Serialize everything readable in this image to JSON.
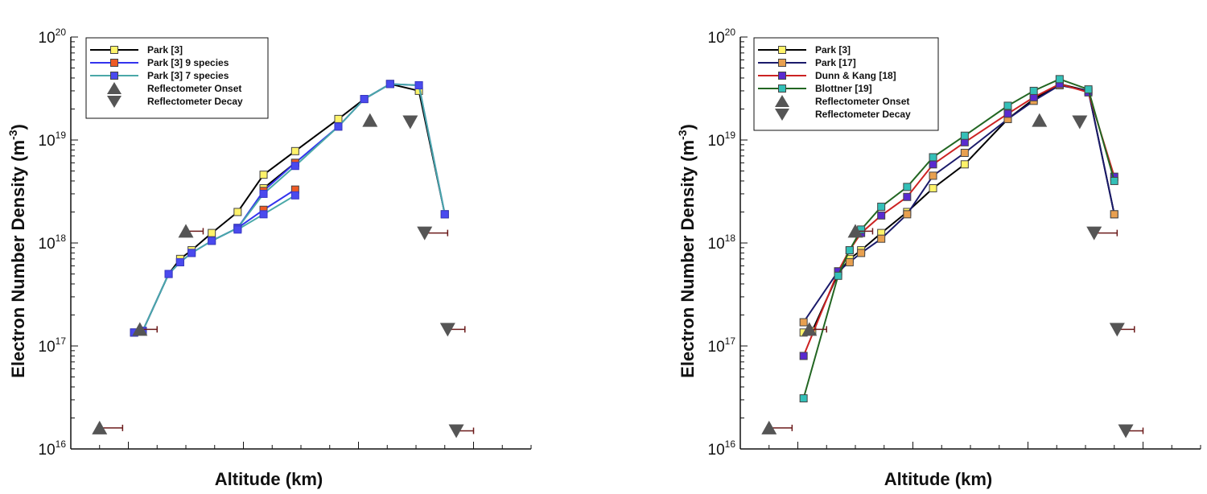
{
  "chart_data": [
    {
      "type": "line",
      "xlabel": "Altitude (km)",
      "ylabel_main": "Electron Number Density (m",
      "ylabel_exp": "-3",
      "ylabel_close": ")",
      "xlim": [
        90,
        10
      ],
      "xticks": [
        80,
        60,
        40,
        20
      ],
      "ylim": [
        1e+16,
        1e+20
      ],
      "yscale": "log",
      "ytick_base": "10",
      "yticks": [
        {
          "exp": "16",
          "value": 1e+16
        },
        {
          "exp": "17",
          "value": 1e+17
        },
        {
          "exp": "18",
          "value": 1e+18
        },
        {
          "exp": "19",
          "value": 1e+19
        },
        {
          "exp": "20",
          "value": 1e+20
        }
      ],
      "legend_location": "top-left",
      "series": [
        {
          "name": "Park [3]",
          "color": "#000000",
          "marker_color": "#fff36a",
          "marker": "square",
          "segments": [
            {
              "x": [
                79,
                77.5,
                73,
                71,
                69,
                65.5,
                61,
                56.5,
                51,
                43.5,
                39,
                34.5,
                29.5,
                25
              ],
              "y": [
                1.35e+17,
                1.4e+17,
                5e+17,
                7e+17,
                8.5e+17,
                1.25e+18,
                2e+18,
                4.6e+18,
                7.8e+18,
                1.6e+19,
                2.5e+19,
                3.5e+19,
                3e+19,
                1.9e+18
              ]
            },
            {
              "x": [
                56.5,
                51
              ],
              "y": [
                3.4e+18,
                6e+18
              ]
            }
          ]
        },
        {
          "name": "Park [3] 9 species",
          "color": "#3333ee",
          "marker_color": "#ee5a24",
          "marker": "square",
          "segments": [
            {
              "x": [
                79,
                77.5,
                73,
                71,
                69,
                65.5,
                61,
                56.5,
                51,
                43.5,
                39,
                34.5,
                29.5,
                25
              ],
              "y": [
                1.35e+17,
                1.4e+17,
                5e+17,
                6.5e+17,
                8e+17,
                1.05e+18,
                1.4e+18,
                3.2e+18,
                6e+18,
                1.35e+19,
                2.5e+19,
                3.5e+19,
                3.4e+19,
                1.9e+18
              ]
            },
            {
              "x": [
                61,
                56.5,
                51
              ],
              "y": [
                1.4e+18,
                2.1e+18,
                3.3e+18
              ]
            }
          ]
        },
        {
          "name": "Park [3] 7 species",
          "color": "#4aa8a8",
          "marker_color": "#4a4aee",
          "marker": "square",
          "segments": [
            {
              "x": [
                79,
                77.5,
                73,
                71,
                69,
                65.5,
                61,
                56.5,
                51,
                43.5,
                39,
                34.5,
                29.5,
                25
              ],
              "y": [
                1.35e+17,
                1.4e+17,
                5e+17,
                6.5e+17,
                8e+17,
                1.05e+18,
                1.4e+18,
                3e+18,
                5.6e+18,
                1.35e+19,
                2.5e+19,
                3.5e+19,
                3.4e+19,
                1.9e+18
              ]
            },
            {
              "x": [
                61,
                56.5,
                51
              ],
              "y": [
                1.35e+18,
                1.9e+18,
                2.9e+18
              ]
            }
          ]
        }
      ],
      "reflectometer_onset": {
        "name": "Reflectometer Onset",
        "color": "#555555",
        "x": [
          85,
          78,
          70,
          38
        ],
        "y": [
          1.6e+16,
          1.45e+17,
          1.3e+18,
          1.55e+19
        ],
        "xerr_plus": [
          4,
          3,
          3,
          0
        ]
      },
      "reflectometer_decay": {
        "name": "Reflectometer Decay",
        "color": "#555555",
        "x": [
          23,
          24.5,
          28.5,
          31
        ],
        "y": [
          1.5e+16,
          1.45e+17,
          1.25e+18,
          1.5e+19
        ],
        "xerr_plus": [
          3,
          3,
          4,
          0
        ]
      }
    },
    {
      "type": "line",
      "xlabel": "Altitude (km)",
      "ylabel_main": "Electron Number Density (m",
      "ylabel_exp": "-3",
      "ylabel_close": ")",
      "xlim": [
        90,
        10
      ],
      "xticks": [
        80,
        60,
        40,
        20
      ],
      "ylim": [
        1e+16,
        1e+20
      ],
      "yscale": "log",
      "ytick_base": "10",
      "yticks": [
        {
          "exp": "16",
          "value": 1e+16
        },
        {
          "exp": "17",
          "value": 1e+17
        },
        {
          "exp": "18",
          "value": 1e+18
        },
        {
          "exp": "19",
          "value": 1e+19
        },
        {
          "exp": "20",
          "value": 1e+20
        }
      ],
      "legend_location": "top-left",
      "series": [
        {
          "name": "Park [3]",
          "color": "#000000",
          "marker_color": "#fff36a",
          "marker": "square",
          "segments": [
            {
              "x": [
                79,
                77.5,
                73,
                71,
                69,
                65.5,
                61,
                56.5,
                51,
                43.5,
                39,
                34.5,
                29.5,
                25
              ],
              "y": [
                1.35e+17,
                1.4e+17,
                5e+17,
                7e+17,
                8.5e+17,
                1.25e+18,
                2e+18,
                3.4e+18,
                5.8e+18,
                1.6e+19,
                2.5e+19,
                3.5e+19,
                3e+19,
                1.9e+18
              ]
            }
          ]
        },
        {
          "name": "Park [17]",
          "color": "#1a1a6a",
          "marker_color": "#e8a050",
          "marker": "square",
          "segments": [
            {
              "x": [
                79,
                73,
                71,
                69,
                65.5,
                61,
                56.5,
                51,
                43.5,
                39,
                34.5,
                29.5,
                25
              ],
              "y": [
                1.7e+17,
                5.3e+17,
                6.5e+17,
                8e+17,
                1.1e+18,
                1.9e+18,
                4.5e+18,
                7.5e+18,
                1.6e+19,
                2.4e+19,
                3.4e+19,
                3e+19,
                1.9e+18
              ]
            }
          ]
        },
        {
          "name": "Dunn & Kang [18]",
          "color": "#cc2222",
          "marker_color": "#5a2ad0",
          "marker": "square",
          "segments": [
            {
              "x": [
                79,
                73,
                71,
                69,
                65.5,
                61,
                56.5,
                51,
                43.5,
                39,
                34.5,
                29.5,
                25
              ],
              "y": [
                8e+16,
                5.3e+17,
                8.5e+17,
                1.25e+18,
                1.85e+18,
                2.8e+18,
                5.8e+18,
                9.5e+18,
                1.8e+19,
                2.6e+19,
                3.5e+19,
                2.9e+19,
                4.4e+18
              ]
            }
          ]
        },
        {
          "name": "Blottner [19]",
          "color": "#226622",
          "marker_color": "#33c0b8",
          "marker": "square",
          "segments": [
            {
              "x": [
                79,
                73,
                71,
                69,
                65.5,
                61,
                56.5,
                51,
                43.5,
                39,
                34.5,
                29.5,
                25
              ],
              "y": [
                3.1e+16,
                4.8e+17,
                8.5e+17,
                1.35e+18,
                2.25e+18,
                3.5e+18,
                6.8e+18,
                1.1e+19,
                2.15e+19,
                3e+19,
                3.9e+19,
                3.1e+19,
                4e+18
              ]
            }
          ]
        }
      ],
      "reflectometer_onset": {
        "name": "Reflectometer Onset",
        "color": "#555555",
        "x": [
          85,
          78,
          70,
          38
        ],
        "y": [
          1.6e+16,
          1.45e+17,
          1.3e+18,
          1.55e+19
        ],
        "xerr_plus": [
          4,
          3,
          3,
          0
        ]
      },
      "reflectometer_decay": {
        "name": "Reflectometer Decay",
        "color": "#555555",
        "x": [
          23,
          24.5,
          28.5,
          31
        ],
        "y": [
          1.5e+16,
          1.45e+17,
          1.25e+18,
          1.5e+19
        ],
        "xerr_plus": [
          3,
          3,
          4,
          0
        ]
      }
    }
  ]
}
